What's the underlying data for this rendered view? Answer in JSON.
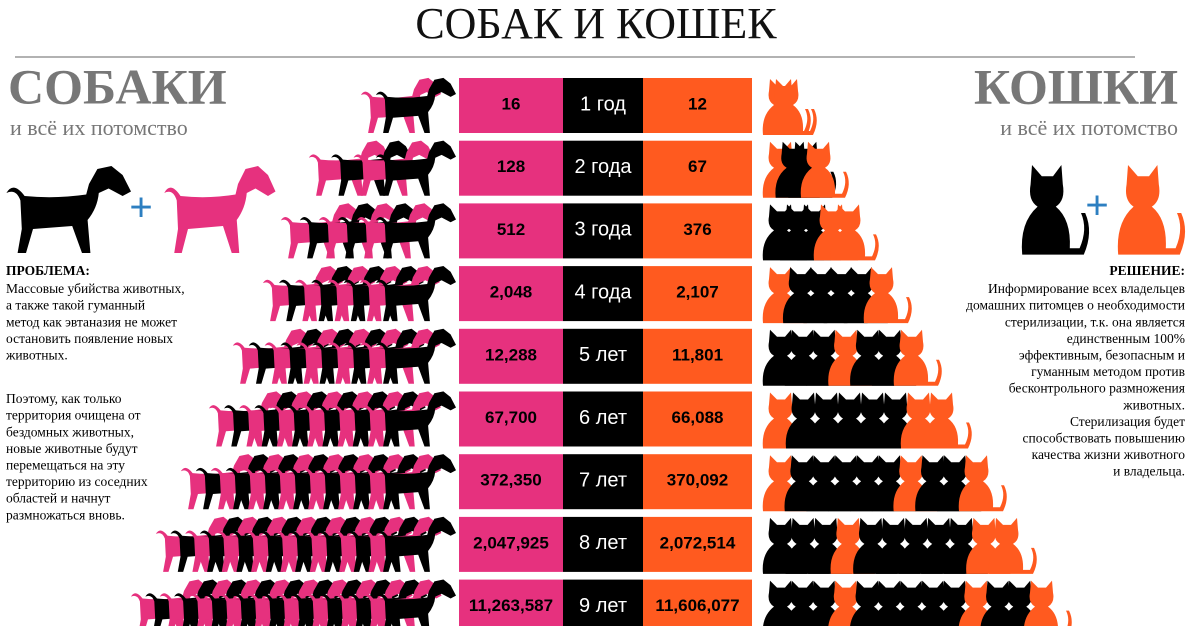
{
  "header": {
    "title": "СОБАК И КОШЕК"
  },
  "left": {
    "title": "СОБАКИ",
    "subtitle": "и всё их потомство",
    "heading": "ПРОБЛЕМА:",
    "paragraphs": [
      [
        "Массовые убийства животных,",
        "а также такой гуманный",
        "метод как эвтаназия не может",
        "остановить появление новых",
        "животных."
      ],
      [
        "Поэтому, как только",
        "территория очищена от",
        "бездомных животных,",
        "новые животные будут",
        "перемещаться на эту",
        "территорию из соседних",
        "областей и начнут",
        "размножаться вновь."
      ]
    ]
  },
  "right": {
    "title": "КОШКИ",
    "subtitle": "и всё их потомство",
    "heading": "РЕШЕНИЕ:",
    "paragraphs": [
      [
        "Информирование всех владельцев",
        "домашних питомцев о необходимости",
        "стерилизации, т.к. она является",
        "единственным 100%",
        "эффективным, безопасным и",
        "гуманным методом против",
        "бесконтрольного размножения",
        "животных.",
        "Стерилизация будет",
        "способствовать повышению",
        "качества жизни животного",
        "и владельца."
      ]
    ]
  },
  "table": {
    "rows": [
      [
        "16",
        "1 год",
        "12"
      ],
      [
        "128",
        "2 года",
        "67"
      ],
      [
        "512",
        "3 года",
        "376"
      ],
      [
        "2,048",
        "4 года",
        "2,107"
      ],
      [
        "12,288",
        "5 лет",
        "11,801"
      ],
      [
        "67,700",
        "6 лет",
        "66,088"
      ],
      [
        "372,350",
        "7 лет",
        "370,092"
      ],
      [
        "2,047,925",
        "8 лет",
        "2,072,514"
      ],
      [
        "11,263,587",
        "9 лет",
        "11,606,077"
      ]
    ]
  }
}
